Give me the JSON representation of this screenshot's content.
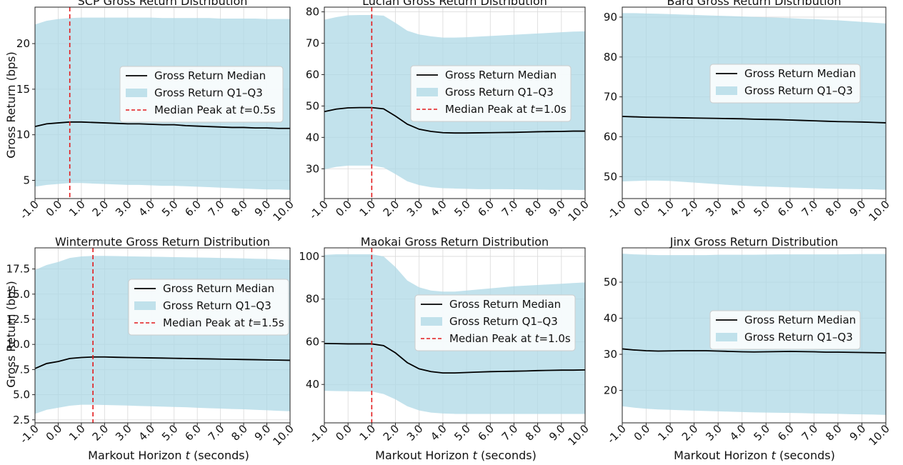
{
  "figure": {
    "x_axis_label": "Markout Horizon",
    "x_axis_var": "t",
    "x_axis_unit": "(seconds)",
    "y_axis_label": "Gross Return (bps)"
  },
  "chart_data": [
    {
      "type": "line",
      "title": "SCP Gross Return Distribution",
      "x": [
        -1.0,
        -0.5,
        0.0,
        0.5,
        1.0,
        1.5,
        2.0,
        2.5,
        3.0,
        3.5,
        4.0,
        4.5,
        5.0,
        5.5,
        6.0,
        6.5,
        7.0,
        7.5,
        8.0,
        8.5,
        9.0,
        9.5,
        10.0
      ],
      "median": [
        10.9,
        11.2,
        11.3,
        11.4,
        11.4,
        11.35,
        11.3,
        11.25,
        11.2,
        11.2,
        11.15,
        11.1,
        11.1,
        11.0,
        10.95,
        10.9,
        10.85,
        10.8,
        10.8,
        10.75,
        10.75,
        10.7,
        10.7
      ],
      "q1": [
        4.3,
        4.5,
        4.6,
        4.7,
        4.7,
        4.65,
        4.6,
        4.55,
        4.5,
        4.5,
        4.45,
        4.4,
        4.4,
        4.35,
        4.3,
        4.25,
        4.2,
        4.15,
        4.1,
        4.05,
        4.0,
        4.0,
        3.95
      ],
      "q3": [
        22.1,
        22.5,
        22.7,
        22.8,
        22.85,
        22.85,
        22.85,
        22.85,
        22.85,
        22.85,
        22.85,
        22.8,
        22.8,
        22.8,
        22.8,
        22.8,
        22.75,
        22.75,
        22.75,
        22.75,
        22.7,
        22.7,
        22.7
      ],
      "peak_x": 0.5,
      "peak_label": "Median Peak at t=0.5s",
      "ylim": [
        3.0,
        24.0
      ],
      "yticks": [
        5,
        10,
        15,
        20
      ],
      "ytick_labels": [
        "5",
        "10",
        "15",
        "20"
      ],
      "legend": [
        "Gross Return Median",
        "Gross Return Q1–Q3",
        "Median Peak at "
      ],
      "legend_peak_value": "=0.5s"
    },
    {
      "type": "line",
      "title": "Lucian Gross Return Distribution",
      "x": [
        -1.0,
        -0.5,
        0.0,
        0.5,
        1.0,
        1.5,
        2.0,
        2.5,
        3.0,
        3.5,
        4.0,
        4.5,
        5.0,
        5.5,
        6.0,
        6.5,
        7.0,
        7.5,
        8.0,
        8.5,
        9.0,
        9.5,
        10.0
      ],
      "median": [
        48.2,
        49.0,
        49.4,
        49.5,
        49.5,
        49.1,
        46.8,
        44.2,
        42.6,
        41.9,
        41.5,
        41.4,
        41.4,
        41.45,
        41.5,
        41.55,
        41.6,
        41.7,
        41.8,
        41.85,
        41.9,
        42.0,
        42.0
      ],
      "q1": [
        29.8,
        30.6,
        31.0,
        31.0,
        31.0,
        30.4,
        28.3,
        26.0,
        24.8,
        24.1,
        23.8,
        23.7,
        23.6,
        23.5,
        23.5,
        23.5,
        23.45,
        23.4,
        23.35,
        23.3,
        23.3,
        23.25,
        23.2
      ],
      "q3": [
        77.5,
        78.3,
        78.9,
        79.0,
        79.0,
        78.8,
        76.5,
        74.0,
        72.8,
        72.2,
        71.8,
        71.8,
        71.9,
        72.1,
        72.3,
        72.5,
        72.7,
        72.9,
        73.1,
        73.3,
        73.5,
        73.7,
        73.8
      ],
      "peak_x": 1.0,
      "peak_label": "Median Peak at t=1.0s",
      "ylim": [
        20.5,
        81.5
      ],
      "yticks": [
        30,
        40,
        50,
        60,
        70,
        80
      ],
      "ytick_labels": [
        "30",
        "40",
        "50",
        "60",
        "70",
        "80"
      ],
      "legend": [
        "Gross Return Median",
        "Gross Return Q1–Q3",
        "Median Peak at "
      ],
      "legend_peak_value": "=1.0s"
    },
    {
      "type": "line",
      "title": "Bard Gross Return Distribution",
      "x": [
        -1.0,
        -0.5,
        0.0,
        0.5,
        1.0,
        1.5,
        2.0,
        2.5,
        3.0,
        3.5,
        4.0,
        4.5,
        5.0,
        5.5,
        6.0,
        6.5,
        7.0,
        7.5,
        8.0,
        8.5,
        9.0,
        9.5,
        10.0
      ],
      "median": [
        65.1,
        65.0,
        64.9,
        64.85,
        64.8,
        64.75,
        64.7,
        64.65,
        64.6,
        64.55,
        64.5,
        64.4,
        64.35,
        64.3,
        64.2,
        64.1,
        64.0,
        63.9,
        63.8,
        63.75,
        63.7,
        63.6,
        63.5
      ],
      "q1": [
        48.8,
        48.9,
        49.0,
        49.0,
        48.9,
        48.7,
        48.5,
        48.3,
        48.1,
        47.9,
        47.75,
        47.6,
        47.5,
        47.4,
        47.3,
        47.2,
        47.1,
        47.0,
        46.95,
        46.9,
        46.85,
        46.8,
        46.7
      ],
      "q3": [
        91.0,
        91.0,
        90.9,
        90.85,
        90.75,
        90.65,
        90.55,
        90.45,
        90.35,
        90.25,
        90.15,
        90.05,
        89.95,
        89.85,
        89.75,
        89.6,
        89.5,
        89.35,
        89.2,
        89.0,
        88.8,
        88.6,
        88.4
      ],
      "peak_x": null,
      "ylim": [
        44.5,
        92.5
      ],
      "yticks": [
        50,
        60,
        70,
        80,
        90
      ],
      "ytick_labels": [
        "50",
        "60",
        "70",
        "80",
        "90"
      ],
      "legend": [
        "Gross Return Median",
        "Gross Return Q1–Q3"
      ]
    },
    {
      "type": "line",
      "title": "Wintermute Gross Return Distribution",
      "x": [
        -1.0,
        -0.5,
        0.0,
        0.5,
        1.0,
        1.5,
        2.0,
        2.5,
        3.0,
        3.5,
        4.0,
        4.5,
        5.0,
        5.5,
        6.0,
        6.5,
        7.0,
        7.5,
        8.0,
        8.5,
        9.0,
        9.5,
        10.0
      ],
      "median": [
        7.6,
        8.1,
        8.3,
        8.6,
        8.7,
        8.75,
        8.75,
        8.72,
        8.7,
        8.68,
        8.66,
        8.64,
        8.62,
        8.6,
        8.58,
        8.56,
        8.54,
        8.52,
        8.5,
        8.48,
        8.46,
        8.44,
        8.42
      ],
      "q1": [
        3.1,
        3.5,
        3.7,
        3.9,
        4.0,
        4.0,
        3.98,
        3.95,
        3.92,
        3.88,
        3.85,
        3.82,
        3.78,
        3.75,
        3.7,
        3.66,
        3.62,
        3.58,
        3.55,
        3.5,
        3.45,
        3.4,
        3.35
      ],
      "q3": [
        17.4,
        17.9,
        18.2,
        18.6,
        18.75,
        18.8,
        18.8,
        18.78,
        18.76,
        18.74,
        18.72,
        18.7,
        18.68,
        18.66,
        18.64,
        18.62,
        18.6,
        18.58,
        18.55,
        18.52,
        18.5,
        18.45,
        18.4
      ],
      "peak_x": 1.5,
      "peak_label": "Median Peak at t=1.5s",
      "ylim": [
        2.2,
        19.6
      ],
      "yticks": [
        2.5,
        5.0,
        7.5,
        10.0,
        12.5,
        15.0,
        17.5
      ],
      "ytick_labels": [
        "2.5",
        "5.0",
        "7.5",
        "10.0",
        "12.5",
        "15.0",
        "17.5"
      ],
      "legend": [
        "Gross Return Median",
        "Gross Return Q1–Q3",
        "Median Peak at "
      ],
      "legend_peak_value": "=1.5s"
    },
    {
      "type": "line",
      "title": "Maokai Gross Return Distribution",
      "x": [
        -1.0,
        -0.5,
        0.0,
        0.5,
        1.0,
        1.5,
        2.0,
        2.5,
        3.0,
        3.5,
        4.0,
        4.5,
        5.0,
        5.5,
        6.0,
        6.5,
        7.0,
        7.5,
        8.0,
        8.5,
        9.0,
        9.5,
        10.0
      ],
      "median": [
        59.2,
        59.1,
        59.0,
        59.0,
        59.0,
        58.2,
        54.8,
        50.2,
        47.3,
        46.0,
        45.4,
        45.4,
        45.6,
        45.8,
        46.0,
        46.1,
        46.2,
        46.3,
        46.5,
        46.6,
        46.7,
        46.7,
        46.8
      ],
      "q1": [
        37.0,
        36.9,
        36.8,
        36.7,
        36.7,
        35.5,
        33.0,
        29.8,
        27.8,
        26.8,
        26.4,
        26.2,
        26.2,
        26.2,
        26.2,
        26.2,
        26.2,
        26.2,
        26.2,
        26.2,
        26.2,
        26.2,
        26.2
      ],
      "q3": [
        100.7,
        101.0,
        101.0,
        101.0,
        101.0,
        100.0,
        95.0,
        88.7,
        85.5,
        84.0,
        83.5,
        83.5,
        84.0,
        84.5,
        85.0,
        85.5,
        86.0,
        86.3,
        86.6,
        86.9,
        87.2,
        87.5,
        87.8
      ],
      "peak_x": 1.0,
      "peak_label": "Median Peak at t=1.0s",
      "ylim": [
        22.0,
        104.0
      ],
      "yticks": [
        40,
        60,
        80,
        100
      ],
      "ytick_labels": [
        "40",
        "60",
        "80",
        "100"
      ],
      "legend": [
        "Gross Return Median",
        "Gross Return Q1–Q3",
        "Median Peak at "
      ],
      "legend_peak_value": "=1.0s"
    },
    {
      "type": "line",
      "title": "Jinx Gross Return Distribution",
      "x": [
        -1.0,
        -0.5,
        0.0,
        0.5,
        1.0,
        1.5,
        2.0,
        2.5,
        3.0,
        3.5,
        4.0,
        4.5,
        5.0,
        5.5,
        6.0,
        6.5,
        7.0,
        7.5,
        8.0,
        8.5,
        9.0,
        9.5,
        10.0
      ],
      "median": [
        31.5,
        31.2,
        31.0,
        30.9,
        30.95,
        31.0,
        31.0,
        31.0,
        30.9,
        30.8,
        30.7,
        30.65,
        30.7,
        30.75,
        30.8,
        30.75,
        30.7,
        30.6,
        30.6,
        30.55,
        30.5,
        30.45,
        30.4
      ],
      "q1": [
        15.6,
        15.2,
        14.9,
        14.7,
        14.6,
        14.5,
        14.4,
        14.3,
        14.2,
        14.1,
        14.0,
        13.9,
        13.85,
        13.8,
        13.75,
        13.7,
        13.6,
        13.55,
        13.5,
        13.4,
        13.35,
        13.3,
        13.2
      ],
      "q3": [
        57.9,
        57.7,
        57.6,
        57.5,
        57.5,
        57.5,
        57.5,
        57.5,
        57.6,
        57.6,
        57.6,
        57.6,
        57.65,
        57.7,
        57.7,
        57.7,
        57.7,
        57.7,
        57.7,
        57.75,
        57.8,
        57.8,
        57.8
      ],
      "peak_x": null,
      "ylim": [
        11.0,
        59.5
      ],
      "yticks": [
        20,
        30,
        40,
        50
      ],
      "ytick_labels": [
        "20",
        "30",
        "40",
        "50"
      ],
      "legend": [
        "Gross Return Median",
        "Gross Return Q1–Q3"
      ]
    }
  ],
  "xticks": [
    -1,
    0,
    1,
    2,
    3,
    4,
    5,
    6,
    7,
    8,
    9,
    10
  ],
  "xtick_labels": [
    "-1.0",
    "0.0",
    "1.0",
    "2.0",
    "3.0",
    "4.0",
    "5.0",
    "6.0",
    "7.0",
    "8.0",
    "9.0",
    "10.0"
  ],
  "colors": {
    "median_line": "#000000",
    "band_fill": "#add8e6",
    "peak_line": "#e31a1c",
    "grid": "#d9d9d9",
    "axes": "#222222"
  }
}
